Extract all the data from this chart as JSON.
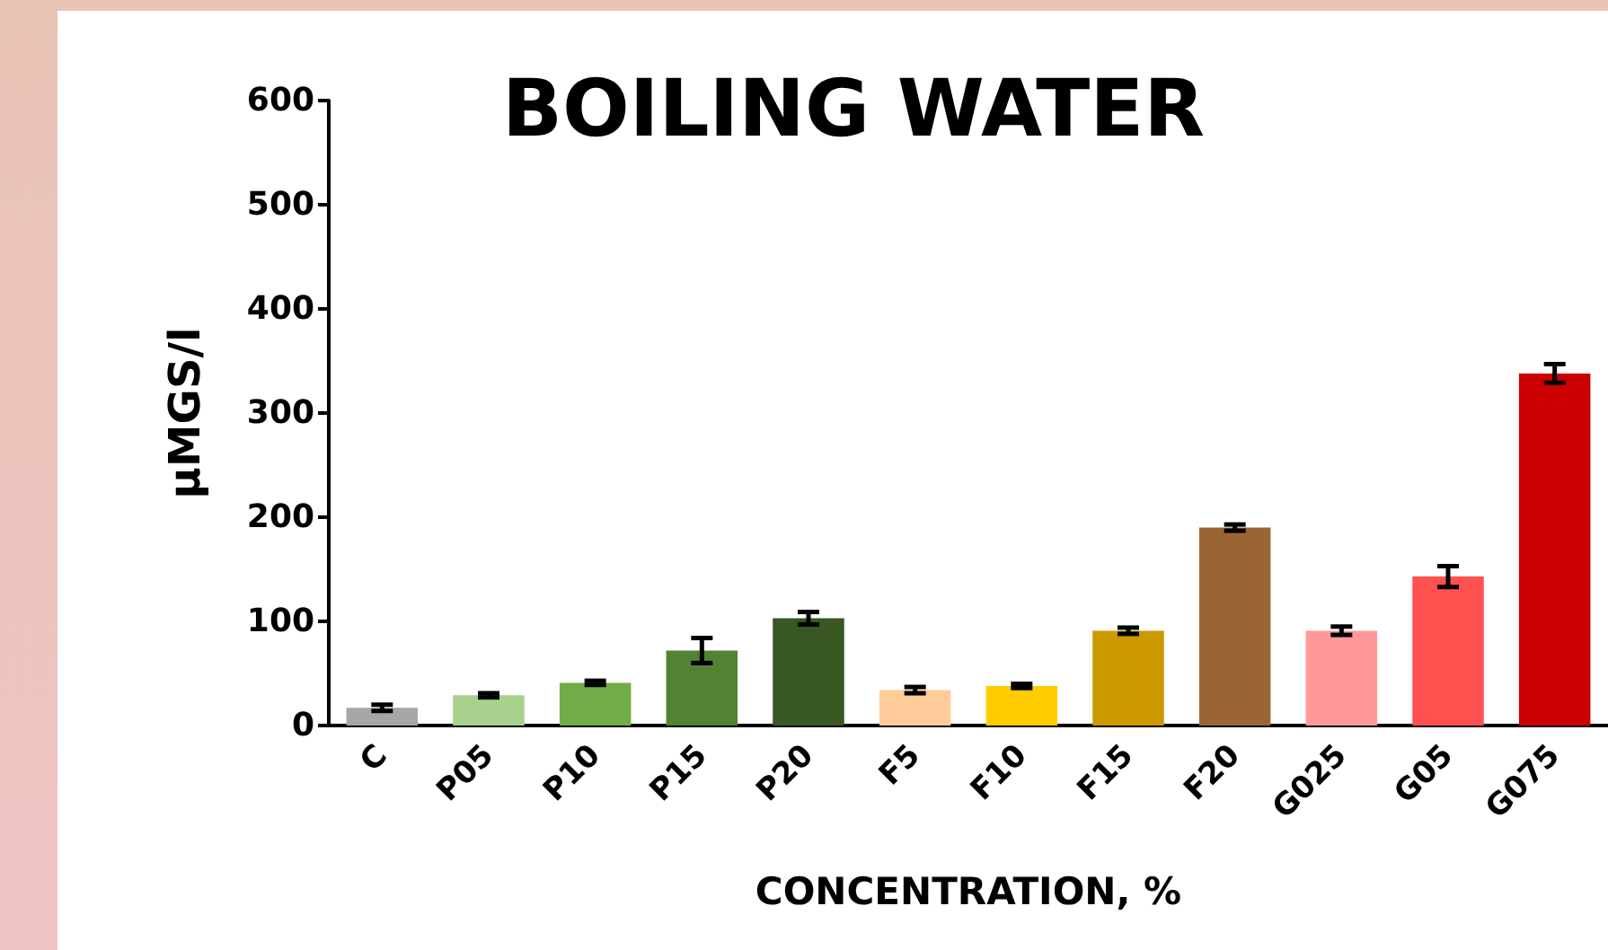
{
  "chart_data": {
    "type": "bar",
    "title": "BOILING WATER",
    "xlabel": "CONCENTRATION, %",
    "ylabel": "µMGS/l",
    "categories": [
      "C",
      "P05",
      "P10",
      "P15",
      "P20",
      "F5",
      "F10",
      "F15",
      "F20",
      "G025",
      "G05",
      "G075"
    ],
    "values": [
      17,
      29,
      41,
      72,
      103,
      34,
      38,
      91,
      190,
      91,
      143,
      338
    ],
    "errors": [
      3,
      2,
      2,
      12,
      6,
      3,
      2,
      3,
      3,
      4,
      10,
      9
    ],
    "colors": [
      "#a6a6a6",
      "#a9d18e",
      "#70ad47",
      "#548235",
      "#385723",
      "#ffcc99",
      "#ffcc00",
      "#cc9900",
      "#996633",
      "#ff9999",
      "#ff5050",
      "#cc0000"
    ],
    "ylim": [
      0,
      600
    ],
    "yticks": [
      0,
      100,
      200,
      300,
      400,
      500,
      600
    ],
    "grid": false
  }
}
